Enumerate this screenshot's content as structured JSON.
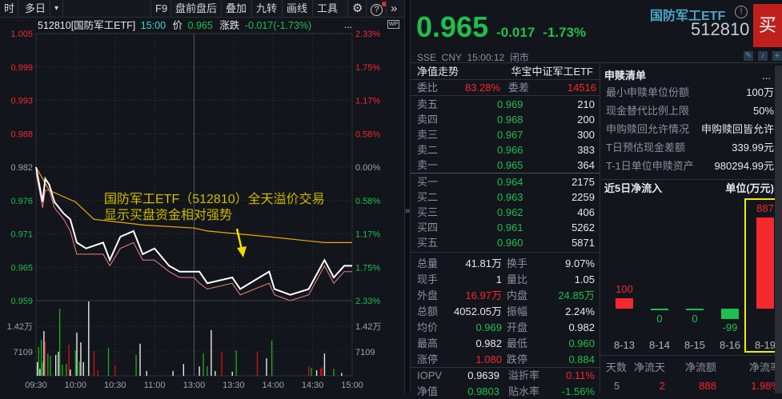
{
  "toolbar": {
    "left": [
      "时",
      "多日"
    ],
    "dropdown": "▾",
    "right": [
      "F9",
      "盘前盘后",
      "叠加",
      "九转",
      "画线",
      "工具"
    ],
    "gear": "⚙",
    "help": "?",
    "more": "»"
  },
  "quote_line": {
    "code": "512810[国防军工ETF]",
    "time": "15:00",
    "price_label": "价",
    "price": "0.965",
    "change_label": "涨跌",
    "change": "-0.017(-1.73%)",
    "more": "...",
    "wp": "WP"
  },
  "chart_data": {
    "type": "line",
    "price_ticks": [
      "1.005",
      "0.999",
      "0.993",
      "0.988",
      "0.982",
      "0.976",
      "0.971",
      "0.965",
      "0.959"
    ],
    "pct_ticks": [
      "2.33%",
      "1.75%",
      "1.17%",
      "0.58%",
      "0.00%",
      "0.58%",
      "1.17%",
      "1.75%",
      "2.33%"
    ],
    "volume_ticks": [
      "1.42万",
      "7109"
    ],
    "time_ticks": [
      "09:30",
      "10:00",
      "10:30",
      "11:00",
      "13:00",
      "13:30",
      "14:00",
      "14:30",
      "15:00"
    ],
    "prev_close": 0.982,
    "ylim": [
      0.959,
      1.005
    ],
    "volume_max": 14200,
    "price": [
      [
        "09:30",
        0.982
      ],
      [
        "09:35",
        0.976
      ],
      [
        "09:37",
        0.98
      ],
      [
        "09:40",
        0.979
      ],
      [
        "09:44",
        0.976
      ],
      [
        "09:51",
        0.974
      ],
      [
        "09:56",
        0.973
      ],
      [
        "10:01",
        0.969
      ],
      [
        "10:08",
        0.968
      ],
      [
        "10:21",
        0.969
      ],
      [
        "10:26",
        0.966
      ],
      [
        "10:34",
        0.97
      ],
      [
        "10:44",
        0.971
      ],
      [
        "10:51",
        0.967
      ],
      [
        "11:00",
        0.968
      ],
      [
        "11:11",
        0.965
      ],
      [
        "11:19",
        0.964
      ],
      [
        "11:30",
        0.964
      ],
      [
        "13:04",
        0.964
      ],
      [
        "13:10",
        0.962
      ],
      [
        "13:29",
        0.963
      ],
      [
        "13:35",
        0.961
      ],
      [
        "13:57",
        0.964
      ],
      [
        "14:01",
        0.961
      ],
      [
        "14:13",
        0.96
      ],
      [
        "14:27",
        0.961
      ],
      [
        "14:39",
        0.966
      ],
      [
        "14:46",
        0.963
      ],
      [
        "14:54",
        0.965
      ],
      [
        "15:00",
        0.965
      ]
    ],
    "nav": [
      [
        "09:30",
        0.981
      ],
      [
        "09:35",
        0.975
      ],
      [
        "09:37",
        0.978
      ],
      [
        "09:40",
        0.978
      ],
      [
        "09:44",
        0.975
      ],
      [
        "09:51",
        0.973
      ],
      [
        "09:56",
        0.971
      ],
      [
        "10:01",
        0.967
      ],
      [
        "10:08",
        0.967
      ],
      [
        "10:21",
        0.967
      ],
      [
        "10:26",
        0.965
      ],
      [
        "10:34",
        0.968
      ],
      [
        "10:44",
        0.969
      ],
      [
        "10:51",
        0.966
      ],
      [
        "11:00",
        0.966
      ],
      [
        "11:11",
        0.964
      ],
      [
        "11:19",
        0.963
      ],
      [
        "11:30",
        0.963
      ],
      [
        "13:04",
        0.962
      ],
      [
        "13:10",
        0.961
      ],
      [
        "13:29",
        0.962
      ],
      [
        "13:35",
        0.96
      ],
      [
        "13:57",
        0.962
      ],
      [
        "14:01",
        0.96
      ],
      [
        "14:13",
        0.959
      ],
      [
        "14:27",
        0.96
      ],
      [
        "14:39",
        0.965
      ],
      [
        "14:46",
        0.962
      ],
      [
        "14:54",
        0.964
      ],
      [
        "15:00",
        0.964
      ]
    ],
    "average": [
      [
        "09:30",
        0.982
      ],
      [
        "09:40",
        0.978
      ],
      [
        "10:00",
        0.976
      ],
      [
        "10:14",
        0.973
      ],
      [
        "10:53",
        0.972
      ],
      [
        "11:30",
        0.9715
      ],
      [
        "13:10",
        0.971
      ],
      [
        "13:57",
        0.97
      ],
      [
        "14:39",
        0.969
      ],
      [
        "15:00",
        0.969
      ]
    ],
    "volume": [
      [
        "09:31",
        3900,
        "w"
      ],
      [
        "09:32",
        8200,
        "g"
      ],
      [
        "09:33",
        2000,
        "w"
      ],
      [
        "09:34",
        10300,
        "g"
      ],
      [
        "09:35",
        3900,
        "g"
      ],
      [
        "09:36",
        12800,
        "w"
      ],
      [
        "09:37",
        9800,
        "r"
      ],
      [
        "09:39",
        6400,
        "g"
      ],
      [
        "09:41",
        5700,
        "g"
      ],
      [
        "09:45",
        6000,
        "w"
      ],
      [
        "09:47",
        6900,
        "w"
      ],
      [
        "09:48",
        19200,
        "g"
      ],
      [
        "09:50",
        3200,
        "g"
      ],
      [
        "09:53",
        3400,
        "g"
      ],
      [
        "09:55",
        8900,
        "r"
      ],
      [
        "09:56",
        1800,
        "w"
      ],
      [
        "10:00",
        7300,
        "g"
      ],
      [
        "10:01",
        12400,
        "w"
      ],
      [
        "10:03",
        4100,
        "g"
      ],
      [
        "10:04",
        9600,
        "w"
      ],
      [
        "10:06",
        3900,
        "w"
      ],
      [
        "10:10",
        21300,
        "w"
      ],
      [
        "10:14",
        7100,
        "r"
      ],
      [
        "10:17",
        1600,
        "r"
      ],
      [
        "10:25",
        8000,
        "g"
      ],
      [
        "10:30",
        3000,
        "r"
      ],
      [
        "10:46",
        6000,
        "g"
      ],
      [
        "10:49",
        9200,
        "w"
      ],
      [
        "10:54",
        1400,
        "w"
      ],
      [
        "11:14",
        1400,
        "w"
      ],
      [
        "11:22",
        3400,
        "w"
      ],
      [
        "13:04",
        2700,
        "w"
      ],
      [
        "13:07",
        6400,
        "g"
      ],
      [
        "13:10",
        2700,
        "g"
      ],
      [
        "13:13",
        13100,
        "w"
      ],
      [
        "13:16",
        1400,
        "w"
      ],
      [
        "13:21",
        6900,
        "r"
      ],
      [
        "13:29",
        1200,
        "w"
      ],
      [
        "13:32",
        7300,
        "g"
      ],
      [
        "13:48",
        6900,
        "r"
      ],
      [
        "13:55",
        5000,
        "w"
      ],
      [
        "13:59",
        10100,
        "g"
      ],
      [
        "14:27",
        2700,
        "r"
      ],
      [
        "14:29",
        2300,
        "g"
      ],
      [
        "14:33",
        1600,
        "w"
      ],
      [
        "14:36",
        2000,
        "r"
      ],
      [
        "14:37",
        2500,
        "r"
      ],
      [
        "14:39",
        6400,
        "w"
      ],
      [
        "14:46",
        2000,
        "g"
      ],
      [
        "14:52",
        800,
        "w"
      ]
    ],
    "annotation": [
      "国防军工ETF（512810）全天溢价交易",
      "显示买盘资金相对强势"
    ]
  },
  "header": {
    "price": "0.965",
    "change": "-0.017",
    "change_pct": "-1.73%",
    "name": "国防军工ETF",
    "code": "512810",
    "buy": "买",
    "info": "SSE  CNY  15:00:12  闭市"
  },
  "nav_row": {
    "label": "净值走势",
    "index": "华宝中证军工ETF"
  },
  "order_ratio": {
    "label1": "委比",
    "value1": "83.28%",
    "label2": "委差",
    "value2": "14516"
  },
  "asks": [
    [
      "卖五",
      "0.969",
      "210"
    ],
    [
      "卖四",
      "0.968",
      "200"
    ],
    [
      "卖三",
      "0.967",
      "300"
    ],
    [
      "卖二",
      "0.966",
      "383"
    ],
    [
      "卖一",
      "0.965",
      "364"
    ]
  ],
  "bids": [
    [
      "买一",
      "0.964",
      "2175"
    ],
    [
      "买二",
      "0.963",
      "2259"
    ],
    [
      "买三",
      "0.962",
      "406"
    ],
    [
      "买四",
      "0.961",
      "5262"
    ],
    [
      "买五",
      "0.960",
      "5871"
    ]
  ],
  "stats": [
    [
      "总量",
      "41.81万",
      "w",
      "换手",
      "9.07%",
      "w"
    ],
    [
      "现手",
      "1",
      "w",
      "量比",
      "1.05",
      "w"
    ],
    [
      "外盘",
      "16.97万",
      "r",
      "内盘",
      "24.85万",
      "g"
    ],
    [
      "总额",
      "4052.05万",
      "w",
      "振幅",
      "2.24%",
      "w"
    ],
    [
      "均价",
      "0.969",
      "g",
      "开盘",
      "0.982",
      "w"
    ],
    [
      "最高",
      "0.982",
      "w",
      "最低",
      "0.960",
      "g"
    ],
    [
      "涨停",
      "1.080",
      "r",
      "跌停",
      "0.884",
      "g"
    ]
  ],
  "iopv": [
    [
      "IOPV",
      "0.9639",
      "w",
      "溢折率",
      "0.11%",
      "r"
    ],
    [
      "净值",
      "0.9803",
      "g",
      "贴水率",
      "-1.56%",
      "g"
    ]
  ],
  "creation": {
    "title": "申赎清单",
    "more": "...",
    "rows": [
      [
        "最小申赎单位份额",
        "100万"
      ],
      [
        "现金替代比例上限",
        "50%"
      ],
      [
        "申购赎回允许情况",
        "申购赎回皆允许"
      ],
      [
        "T日预估现金差额",
        "339.99元"
      ],
      [
        "T-1日单位申赎资产",
        "980294.99元"
      ]
    ]
  },
  "flow": {
    "title": "近5日净流入",
    "unit": "单位(万元)",
    "dates": [
      "8-13",
      "8-14",
      "8-15",
      "8-16",
      "8-19"
    ],
    "values": [
      100,
      0,
      0,
      -99,
      887
    ],
    "labels": [
      "100",
      "0",
      "0",
      "-99",
      "887"
    ],
    "highlight": "8-19",
    "summary_headers": [
      "天数",
      "净流天",
      "净流额",
      "净流率"
    ],
    "summary_values": [
      "5",
      "2",
      "888",
      "1.98%"
    ]
  },
  "colors": {
    "up": "#f5282e",
    "down": "#1fbf4f",
    "avg": "#f0a800",
    "annotation": "#e8e000",
    "name": "#4aa8c8",
    "buy": "#c0201c"
  }
}
